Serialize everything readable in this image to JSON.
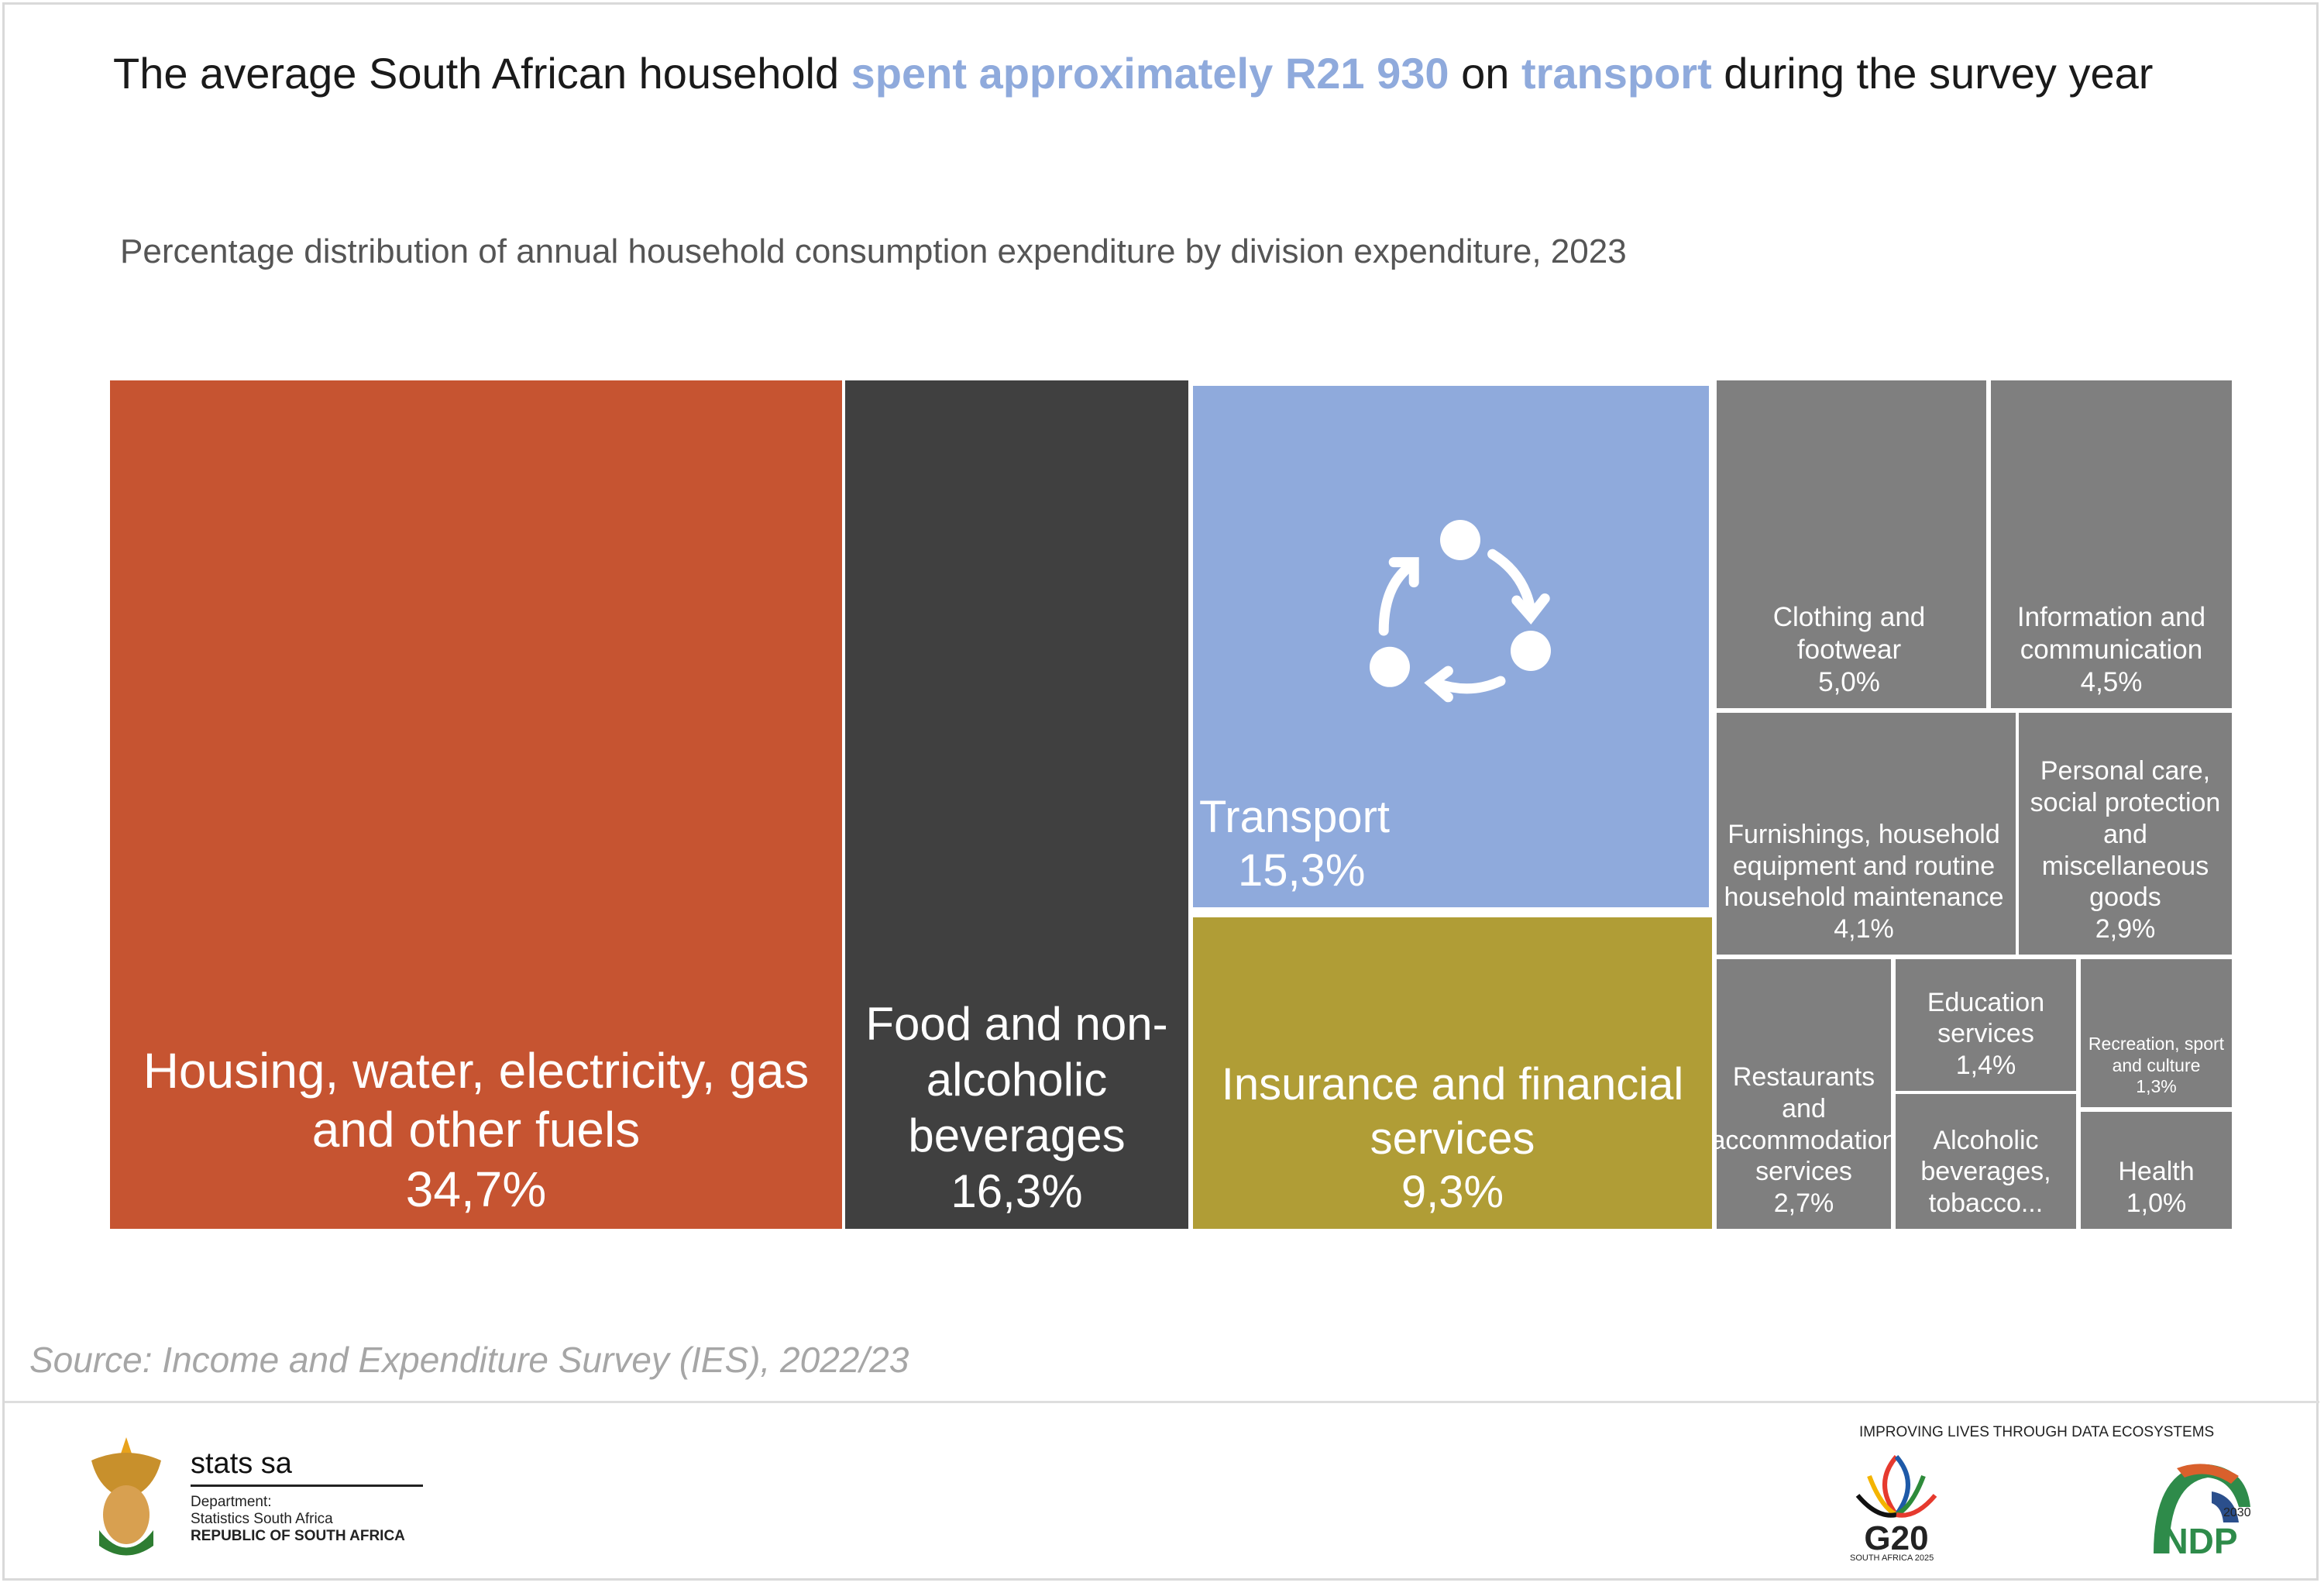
{
  "header": {
    "title_parts": [
      "The average South African household ",
      "spent approximately R21 930",
      " on ",
      "transport",
      " during the survey year"
    ],
    "subtitle": "Percentage distribution of annual household consumption expenditure by division expenditure, 2023"
  },
  "chart_data": {
    "type": "treemap",
    "title": "Percentage distribution of annual household consumption expenditure by division expenditure, 2023",
    "unit": "%",
    "items": [
      {
        "label": "Housing, water, electricity, gas and other fuels",
        "value_label": "34,7%",
        "value": 34.7,
        "color": "#c65431"
      },
      {
        "label": "Food and non-alcoholic beverages",
        "value_label": "16,3%",
        "value": 16.3,
        "color": "#404040"
      },
      {
        "label": "Transport",
        "value_label": "15,3%",
        "value": 15.3,
        "color": "#8faadc"
      },
      {
        "label": "Insurance and financial services",
        "value_label": "9,3%",
        "value": 9.3,
        "color": "#b09d36"
      },
      {
        "label": "Clothing and footwear",
        "value_label": "5,0%",
        "value": 5.0,
        "color": "#7f7f7f"
      },
      {
        "label": "Information and communication",
        "value_label": "4,5%",
        "value": 4.5,
        "color": "#7f7f7f"
      },
      {
        "label": "Furnishings, household equipment and routine household maintenance",
        "value_label": "4,1%",
        "value": 4.1,
        "color": "#7f7f7f"
      },
      {
        "label": "Personal care, social protection and miscellaneous goods",
        "value_label": "2,9%",
        "value": 2.9,
        "color": "#7f7f7f"
      },
      {
        "label": "Restaurants and accommodation services",
        "value_label": "2,7%",
        "value": 2.7,
        "color": "#7f7f7f"
      },
      {
        "label": "Education services",
        "value_label": "1,4%",
        "value": 1.4,
        "color": "#7f7f7f"
      },
      {
        "label": "Alcoholic beverages, tobacco...",
        "value_label": "",
        "value": null,
        "color": "#7f7f7f"
      },
      {
        "label": "Recreation, sport and culture",
        "value_label": "1,3%",
        "value": 1.3,
        "color": "#7f7f7f"
      },
      {
        "label": "Health",
        "value_label": "1,0%",
        "value": 1.0,
        "color": "#7f7f7f"
      }
    ]
  },
  "source": "Source: Income and Expenditure Survey (IES), 2022/23",
  "footer": {
    "stats_name": "stats sa",
    "dept_line1": "Department:",
    "dept_line2": "Statistics South Africa",
    "dept_line3": "REPUBLIC OF SOUTH AFRICA",
    "tagline": "IMPROVING LIVES THROUGH DATA ECOSYSTEMS",
    "g20_logo_text": "G20",
    "g20_sub": "SOUTH AFRICA 2025",
    "ndp_logo_text": "NDP",
    "ndp_year": "2030"
  }
}
